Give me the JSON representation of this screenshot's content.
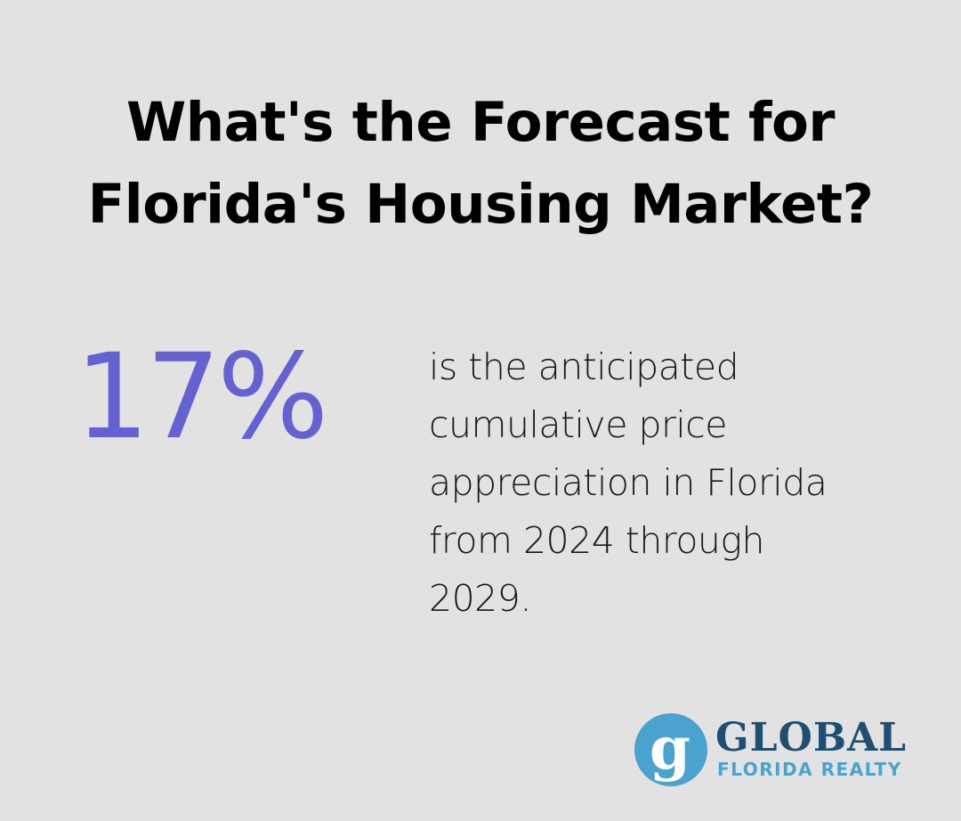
{
  "title": {
    "line1": "What's the Forecast for",
    "line2": "Florida's Housing Market?"
  },
  "stat": {
    "value": "17%",
    "description_lines": [
      "is the anticipated",
      "cumulative price",
      "appreciation in Florida",
      "from 2024 through",
      "2029."
    ]
  },
  "logo": {
    "mark_letter": "g",
    "name": "GLOBAL",
    "subtitle": "FLORIDA REALTY"
  },
  "colors": {
    "background": "#e1e2e1",
    "title": "#000000",
    "stat_accent": "#6461d3",
    "logo_navy": "#1e4f73",
    "logo_blue": "#4aa3cf"
  }
}
